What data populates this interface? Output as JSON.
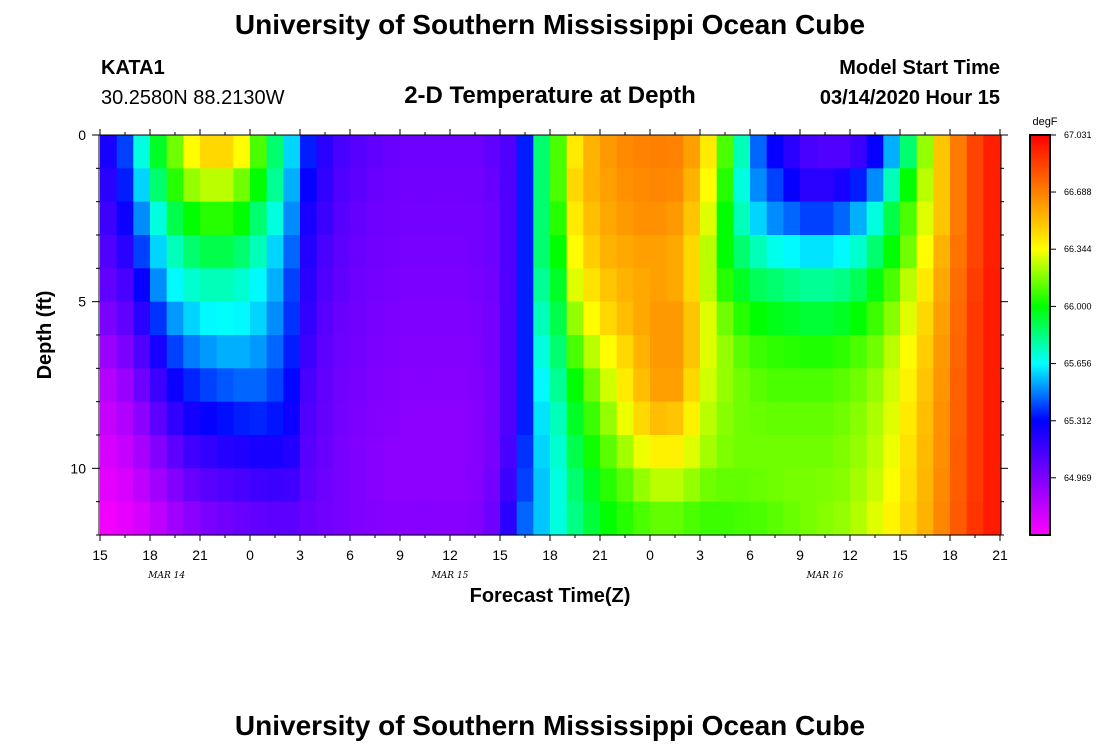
{
  "header": {
    "title_top": "University of Southern Mississippi Ocean Cube",
    "title_bottom": "University of Southern Mississippi Ocean Cube",
    "station_id": "KATA1",
    "station_coords": "30.2580N 88.2130W",
    "model_start_label": "Model Start Time",
    "model_start_value": "03/14/2020 Hour 15"
  },
  "chart_data": {
    "type": "heatmap",
    "title": "2-D Temperature at Depth",
    "xlabel": "Forecast Time(Z)",
    "ylabel": "Depth (ft)",
    "x_tick_labels": [
      "15",
      "18",
      "21",
      "0",
      "3",
      "6",
      "9",
      "12",
      "15",
      "18",
      "21",
      "0",
      "3",
      "6",
      "9",
      "12",
      "15",
      "18",
      "21"
    ],
    "x_hours_range": [
      0,
      54
    ],
    "date_labels": [
      {
        "text": "MAR 14",
        "at_hour": 4
      },
      {
        "text": "MAR 15",
        "at_hour": 21
      },
      {
        "text": "MAR 16",
        "at_hour": 43.5
      }
    ],
    "y_tick_labels": [
      "0",
      "5",
      "10"
    ],
    "y_tick_values": [
      0,
      5,
      10
    ],
    "ylim": [
      0,
      12
    ],
    "y_inverted": true,
    "colorbar": {
      "unit": "degF",
      "min": 64.625,
      "max": 67.031,
      "tick_labels": [
        "67.031",
        "66.688",
        "66.344",
        "66.000",
        "65.656",
        "65.312",
        "64.969"
      ],
      "tick_values": [
        67.031,
        66.688,
        66.344,
        66.0,
        65.656,
        65.312,
        64.969
      ],
      "colors": [
        "#ff00ff",
        "#8000ff",
        "#0000ff",
        "#00ffff",
        "#00ff00",
        "#ffff00",
        "#ff8000",
        "#ff0000"
      ]
    },
    "depth_levels_ft": [
      0,
      1,
      2,
      3,
      4,
      5,
      6,
      7,
      8,
      9,
      10,
      11
    ],
    "hours": [
      0,
      1,
      2,
      3,
      4,
      5,
      6,
      7,
      8,
      9,
      10,
      11,
      12,
      13,
      14,
      15,
      16,
      17,
      18,
      19,
      20,
      21,
      22,
      23,
      24,
      25,
      26,
      27,
      28,
      29,
      30,
      31,
      32,
      33,
      34,
      35,
      36,
      37,
      38,
      39,
      40,
      41,
      42,
      43,
      44,
      45,
      46,
      47,
      48,
      49,
      50,
      51,
      52,
      53
    ],
    "temperature_degF": [
      [
        65.25,
        65.4,
        65.7,
        65.95,
        66.15,
        66.35,
        66.45,
        66.45,
        66.35,
        66.1,
        65.85,
        65.6,
        65.35,
        65.2,
        65.12,
        65.08,
        65.05,
        65.03,
        65.02,
        65.02,
        65.02,
        65.02,
        65.02,
        65.05,
        65.1,
        65.35,
        65.85,
        66.1,
        66.4,
        66.55,
        66.62,
        66.66,
        66.68,
        66.69,
        66.68,
        66.6,
        66.4,
        66.1,
        65.75,
        65.45,
        65.3,
        65.2,
        65.12,
        65.1,
        65.1,
        65.15,
        65.3,
        65.55,
        65.85,
        66.2,
        66.5,
        66.7,
        66.85,
        66.95
      ],
      [
        65.2,
        65.35,
        65.6,
        65.85,
        66.05,
        66.2,
        66.25,
        66.25,
        66.15,
        66.0,
        65.8,
        65.55,
        65.3,
        65.18,
        65.1,
        65.06,
        65.03,
        65.02,
        65.01,
        65.01,
        65.01,
        65.01,
        65.01,
        65.03,
        65.1,
        65.35,
        65.85,
        66.1,
        66.45,
        66.55,
        66.6,
        66.64,
        66.66,
        66.67,
        66.66,
        66.55,
        66.35,
        66.05,
        65.7,
        65.5,
        65.4,
        65.3,
        65.2,
        65.2,
        65.25,
        65.35,
        65.5,
        65.75,
        66.0,
        66.25,
        66.5,
        66.7,
        66.85,
        66.95
      ],
      [
        65.15,
        65.28,
        65.5,
        65.7,
        65.9,
        66.0,
        66.05,
        66.05,
        66.0,
        65.85,
        65.7,
        65.5,
        65.25,
        65.15,
        65.08,
        65.04,
        65.02,
        65.01,
        65.0,
        65.0,
        65.0,
        65.0,
        65.0,
        65.02,
        65.1,
        65.35,
        65.85,
        66.05,
        66.4,
        66.52,
        66.58,
        66.62,
        66.64,
        66.64,
        66.62,
        66.5,
        66.3,
        66.0,
        65.75,
        65.6,
        65.5,
        65.45,
        65.4,
        65.4,
        65.45,
        65.55,
        65.7,
        65.9,
        66.1,
        66.3,
        66.5,
        66.7,
        66.85,
        66.95
      ],
      [
        65.1,
        65.2,
        65.4,
        65.6,
        65.75,
        65.85,
        65.9,
        65.9,
        65.85,
        65.75,
        65.6,
        65.45,
        65.22,
        65.12,
        65.06,
        65.03,
        65.01,
        65.0,
        64.99,
        64.99,
        64.99,
        64.99,
        65.0,
        65.02,
        65.1,
        65.35,
        65.85,
        66.0,
        66.35,
        66.48,
        66.55,
        66.58,
        66.6,
        66.6,
        66.58,
        66.45,
        66.25,
        66.0,
        65.85,
        65.75,
        65.68,
        65.65,
        65.62,
        65.62,
        65.65,
        65.72,
        65.85,
        66.0,
        66.15,
        66.35,
        66.55,
        66.72,
        66.85,
        66.95
      ],
      [
        65.05,
        65.12,
        65.3,
        65.5,
        65.65,
        65.72,
        65.75,
        65.75,
        65.72,
        65.65,
        65.55,
        65.4,
        65.2,
        65.1,
        65.05,
        65.02,
        65.0,
        64.99,
        64.98,
        64.98,
        64.98,
        64.98,
        64.99,
        65.01,
        65.1,
        65.35,
        65.8,
        65.95,
        66.3,
        66.42,
        66.5,
        66.55,
        66.58,
        66.6,
        66.58,
        66.45,
        66.25,
        66.05,
        65.95,
        65.88,
        65.85,
        65.82,
        65.8,
        65.8,
        65.82,
        65.88,
        65.98,
        66.1,
        66.25,
        66.4,
        66.58,
        66.74,
        66.87,
        66.96
      ],
      [
        64.98,
        65.05,
        65.2,
        65.38,
        65.52,
        65.6,
        65.65,
        65.66,
        65.65,
        65.6,
        65.5,
        65.38,
        65.18,
        65.08,
        65.03,
        65.01,
        64.99,
        64.98,
        64.97,
        64.97,
        64.97,
        64.97,
        64.98,
        65.0,
        65.1,
        65.35,
        65.75,
        65.9,
        66.2,
        66.35,
        66.45,
        66.52,
        66.58,
        66.62,
        66.62,
        66.5,
        66.3,
        66.15,
        66.05,
        66.0,
        65.97,
        65.95,
        65.93,
        65.93,
        65.95,
        66.0,
        66.08,
        66.18,
        66.3,
        66.45,
        66.6,
        66.75,
        66.88,
        66.96
      ],
      [
        64.9,
        64.98,
        65.1,
        65.25,
        65.4,
        65.48,
        65.52,
        65.55,
        65.55,
        65.52,
        65.45,
        65.35,
        65.15,
        65.06,
        65.02,
        65.0,
        64.98,
        64.97,
        64.96,
        64.96,
        64.96,
        64.96,
        64.97,
        65.0,
        65.1,
        65.35,
        65.7,
        65.85,
        66.1,
        66.25,
        66.35,
        66.45,
        66.55,
        66.62,
        66.62,
        66.5,
        66.3,
        66.2,
        66.12,
        66.08,
        66.06,
        66.05,
        66.04,
        66.04,
        66.06,
        66.1,
        66.15,
        66.25,
        66.35,
        66.48,
        66.62,
        66.76,
        66.88,
        66.96
      ],
      [
        64.83,
        64.9,
        65.02,
        65.15,
        65.28,
        65.36,
        65.4,
        65.43,
        65.45,
        65.45,
        65.4,
        65.32,
        65.12,
        65.05,
        65.01,
        64.99,
        64.97,
        64.96,
        64.95,
        64.95,
        64.95,
        64.95,
        64.96,
        64.99,
        65.1,
        65.35,
        65.65,
        65.8,
        66.0,
        66.15,
        66.28,
        66.4,
        66.52,
        66.6,
        66.6,
        66.45,
        66.28,
        66.2,
        66.15,
        66.12,
        66.1,
        66.1,
        66.1,
        66.1,
        66.12,
        66.15,
        66.2,
        66.28,
        66.38,
        66.5,
        66.63,
        66.77,
        66.88,
        66.96
      ],
      [
        64.78,
        64.84,
        64.94,
        65.06,
        65.18,
        65.26,
        65.3,
        65.33,
        65.35,
        65.36,
        65.34,
        65.28,
        65.1,
        65.04,
        65.0,
        64.98,
        64.96,
        64.95,
        64.94,
        64.94,
        64.94,
        64.94,
        64.95,
        64.99,
        65.1,
        65.35,
        65.62,
        65.75,
        65.95,
        66.08,
        66.2,
        66.32,
        66.45,
        66.52,
        66.5,
        66.38,
        66.25,
        66.18,
        66.15,
        66.14,
        66.13,
        66.13,
        66.13,
        66.13,
        66.15,
        66.18,
        66.23,
        66.3,
        66.4,
        66.52,
        66.64,
        66.77,
        66.88,
        66.96
      ],
      [
        64.74,
        64.78,
        64.86,
        64.96,
        65.06,
        65.14,
        65.18,
        65.21,
        65.23,
        65.25,
        65.25,
        65.22,
        65.08,
        65.03,
        64.99,
        64.97,
        64.95,
        64.94,
        64.94,
        64.94,
        64.94,
        64.94,
        64.95,
        64.99,
        65.12,
        65.38,
        65.6,
        65.72,
        65.9,
        66.02,
        66.12,
        66.22,
        66.32,
        66.38,
        66.38,
        66.3,
        66.22,
        66.17,
        66.15,
        66.15,
        66.15,
        66.15,
        66.15,
        66.15,
        66.17,
        66.2,
        66.25,
        66.32,
        66.42,
        66.53,
        66.65,
        66.78,
        66.88,
        66.96
      ],
      [
        64.7,
        64.73,
        64.8,
        64.88,
        64.96,
        65.03,
        65.07,
        65.1,
        65.12,
        65.14,
        65.15,
        65.14,
        65.06,
        65.02,
        64.99,
        64.97,
        64.95,
        64.94,
        64.94,
        64.94,
        64.94,
        64.94,
        64.95,
        65.0,
        65.15,
        65.4,
        65.58,
        65.7,
        65.85,
        65.96,
        66.05,
        66.12,
        66.2,
        66.25,
        66.25,
        66.2,
        66.15,
        66.13,
        66.13,
        66.14,
        66.15,
        66.16,
        66.16,
        66.17,
        66.18,
        66.22,
        66.27,
        66.34,
        66.43,
        66.54,
        66.66,
        66.78,
        66.88,
        66.96
      ],
      [
        64.66,
        64.69,
        64.74,
        64.8,
        64.88,
        64.94,
        64.98,
        65.01,
        65.03,
        65.05,
        65.06,
        65.06,
        65.03,
        65.01,
        64.99,
        64.97,
        64.96,
        64.95,
        64.95,
        64.95,
        64.95,
        64.95,
        64.96,
        65.02,
        65.2,
        65.45,
        65.58,
        65.7,
        65.82,
        65.92,
        66.0,
        66.05,
        66.1,
        66.13,
        66.13,
        66.1,
        66.08,
        66.08,
        66.09,
        66.1,
        66.12,
        66.14,
        66.16,
        66.18,
        66.2,
        66.24,
        66.3,
        66.37,
        66.45,
        66.55,
        66.67,
        66.79,
        66.89,
        66.96
      ]
    ]
  }
}
